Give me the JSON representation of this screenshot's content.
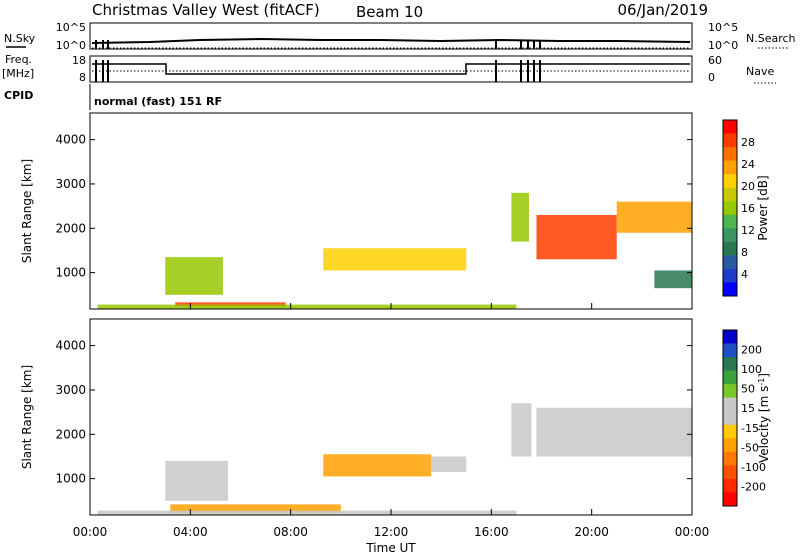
{
  "header": {
    "station": "Christmas Valley West (fitACF)",
    "beam": "Beam 10",
    "date": "06/Jan/2019"
  },
  "status_panels": {
    "sky_label": "N.Sky",
    "search_label": "N.Search",
    "sky_ticks": [
      "10^5",
      "10^0"
    ],
    "search_ticks": [
      "10^5",
      "10^0"
    ],
    "freq_label_1": "Freq.",
    "freq_label_2": "[MHz]",
    "freq_ticks": [
      "18",
      "8"
    ],
    "nave_label": "Nave",
    "nave_ticks": [
      "60",
      "0"
    ],
    "cpid_label": "CPID",
    "cpid_text": "normal (fast) 151 RF"
  },
  "time_axis": {
    "label": "Time UT",
    "ticks": [
      "00:00",
      "04:00",
      "08:00",
      "12:00",
      "16:00",
      "20:00",
      "00:00"
    ]
  },
  "power_colorbar": {
    "label": "Power [dB]",
    "ticks": [
      "28",
      "24",
      "20",
      "16",
      "12",
      "8",
      "4"
    ],
    "colors": [
      "#ff0000",
      "#ff3c00",
      "#ff7000",
      "#ffa000",
      "#ffd000",
      "#c8c800",
      "#96c800",
      "#50b450",
      "#3c9664",
      "#287850",
      "#285aa0",
      "#1e3cc8",
      "#0000ff"
    ]
  },
  "velocity_colorbar": {
    "label": "Velocity [m s-1]",
    "label_main": "Velocity [m s",
    "label_exp": "-1",
    "label_end": "]",
    "ticks": [
      "200",
      "100",
      "50",
      "15",
      "-15",
      "-50",
      "-100",
      "-200"
    ],
    "colors": [
      "#0000c8",
      "#1e50c8",
      "#287850",
      "#3ca03c",
      "#78c828",
      "#c8c8c8",
      "#c8c8c8",
      "#ffc800",
      "#ffa000",
      "#ff7800",
      "#ff5000",
      "#ff2800",
      "#ff0000"
    ]
  },
  "chart_data": [
    {
      "type": "heatmap",
      "title": "Power",
      "xlabel": "Time UT",
      "ylabel": "Slant Range [km]",
      "yticks": [
        "1000",
        "2000",
        "3000",
        "4000"
      ],
      "xlim": [
        "00:00",
        "24:00"
      ],
      "ylim": [
        180,
        4600
      ],
      "colorbar_label": "Power [dB]",
      "zlim": [
        0,
        30
      ],
      "regions": [
        {
          "t": [
            3.4,
            7.8
          ],
          "r": [
            230,
            330
          ],
          "value": 28
        },
        {
          "t": [
            0.3,
            17.0
          ],
          "r": [
            190,
            280
          ],
          "value": 14
        },
        {
          "t": [
            3.0,
            5.3
          ],
          "r": [
            500,
            1350
          ],
          "value": 16
        },
        {
          "t": [
            9.3,
            15.0
          ],
          "r": [
            1050,
            1550
          ],
          "value": 20
        },
        {
          "t": [
            16.8,
            17.5
          ],
          "r": [
            1700,
            2800
          ],
          "value": 16
        },
        {
          "t": [
            17.8,
            21.0
          ],
          "r": [
            1300,
            2300
          ],
          "value": 28
        },
        {
          "t": [
            21.0,
            24.0
          ],
          "r": [
            1900,
            2600
          ],
          "value": 22
        },
        {
          "t": [
            22.5,
            24.0
          ],
          "r": [
            650,
            1050
          ],
          "value": 8
        }
      ]
    },
    {
      "type": "heatmap",
      "title": "Velocity",
      "xlabel": "Time UT",
      "ylabel": "Slant Range [km]",
      "yticks": [
        "1000",
        "2000",
        "3000",
        "4000"
      ],
      "xlim": [
        "00:00",
        "24:00"
      ],
      "ylim": [
        180,
        4600
      ],
      "colorbar_label": "Velocity [m s-1]",
      "zlim": [
        -250,
        250
      ],
      "regions": [
        {
          "t": [
            3.2,
            10.0
          ],
          "r": [
            230,
            420
          ],
          "value": -80
        },
        {
          "t": [
            0.3,
            17.0
          ],
          "r": [
            190,
            280
          ],
          "value": -20
        },
        {
          "t": [
            3.0,
            5.5
          ],
          "r": [
            500,
            1400
          ],
          "value": 0
        },
        {
          "t": [
            9.3,
            13.6
          ],
          "r": [
            1050,
            1550
          ],
          "value": -90
        },
        {
          "t": [
            13.6,
            15.0
          ],
          "r": [
            1150,
            1500
          ],
          "value": 0
        },
        {
          "t": [
            16.8,
            17.6
          ],
          "r": [
            1500,
            2700
          ],
          "value": 0
        },
        {
          "t": [
            17.8,
            24.0
          ],
          "r": [
            1500,
            2600
          ],
          "value": 0
        }
      ]
    }
  ]
}
